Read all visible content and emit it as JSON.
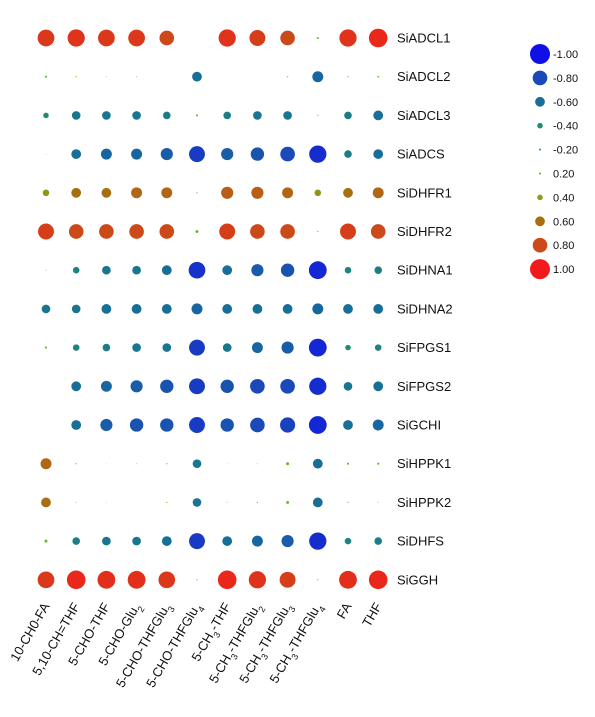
{
  "chart_data": {
    "type": "correlation-dotplot",
    "title": "",
    "xlabel": "",
    "ylabel": "",
    "columns": [
      {
        "text": "10-CH0-FA",
        "sub": "",
        "after": ""
      },
      {
        "text": "5,10-CH=THF",
        "sub": "",
        "after": ""
      },
      {
        "text": "5-CHO-THF",
        "sub": "",
        "after": ""
      },
      {
        "text": "5-CHO-Glu",
        "sub": "2",
        "after": ""
      },
      {
        "text": "5-CHO-THFGlu",
        "sub": "3",
        "after": ""
      },
      {
        "text": "5-CHO-THFGlu",
        "sub": "4",
        "after": ""
      },
      {
        "text": "5-CH",
        "sub": "3",
        "after": "-THF"
      },
      {
        "text": "5-CH",
        "sub": "3",
        "after": "-THFGlu",
        "sub2": "2"
      },
      {
        "text": "5-CH",
        "sub": "3",
        "after": "-THFGlu",
        "sub2": "3"
      },
      {
        "text": "5-CH",
        "sub": "3",
        "after": "-THFGlu",
        "sub2": "4"
      },
      {
        "text": "FA",
        "sub": "",
        "after": ""
      },
      {
        "text": "THF",
        "sub": "",
        "after": ""
      }
    ],
    "rows": [
      "SiADCL1",
      "SiADCL2",
      "SiADCL3",
      "SiADCS",
      "SiDHFR1",
      "SiDHFR2",
      "SiDHNA1",
      "SiDHNA2",
      "SiFPGS1",
      "SiFPGS2",
      "SiGCHI",
      "SiHPPK1",
      "SiHPPK2",
      "SiDHFS",
      "SiGGH"
    ],
    "values": [
      [
        0.88,
        0.9,
        0.88,
        0.88,
        0.8,
        0.02,
        0.9,
        0.85,
        0.8,
        0.2,
        0.9,
        0.95
      ],
      [
        0.2,
        0.15,
        0.1,
        0.1,
        null,
        -0.6,
        0.02,
        null,
        0.15,
        -0.65,
        0.15,
        0.18
      ],
      [
        -0.4,
        -0.55,
        -0.55,
        -0.55,
        -0.5,
        0.2,
        -0.5,
        -0.55,
        -0.55,
        0.15,
        -0.5,
        -0.6
      ],
      [
        0.05,
        -0.6,
        -0.65,
        -0.65,
        -0.7,
        -0.85,
        -0.7,
        -0.75,
        -0.8,
        -0.9,
        -0.5,
        -0.6
      ],
      [
        0.45,
        0.6,
        0.6,
        0.65,
        0.65,
        0.15,
        0.7,
        0.7,
        0.65,
        0.45,
        0.6,
        0.65
      ],
      [
        0.85,
        0.8,
        0.8,
        0.8,
        0.8,
        0.25,
        0.85,
        0.8,
        0.8,
        0.15,
        0.85,
        0.8
      ],
      [
        0.1,
        -0.45,
        -0.55,
        -0.55,
        -0.6,
        -0.88,
        -0.6,
        -0.7,
        -0.75,
        -0.92,
        -0.45,
        -0.5
      ],
      [
        -0.55,
        -0.55,
        -0.6,
        -0.6,
        -0.6,
        -0.65,
        -0.6,
        -0.6,
        -0.6,
        -0.65,
        -0.6,
        -0.6
      ],
      [
        0.2,
        -0.45,
        -0.5,
        -0.55,
        -0.55,
        -0.85,
        -0.55,
        -0.65,
        -0.7,
        -0.92,
        -0.4,
        -0.45
      ],
      [
        0.02,
        -0.6,
        -0.65,
        -0.7,
        -0.75,
        -0.85,
        -0.75,
        -0.8,
        -0.8,
        -0.9,
        -0.55,
        -0.6
      ],
      [
        null,
        -0.6,
        -0.7,
        -0.75,
        -0.75,
        -0.85,
        -0.75,
        -0.8,
        -0.82,
        -0.92,
        -0.6,
        -0.65
      ],
      [
        0.65,
        0.15,
        0.05,
        0.1,
        0.15,
        -0.55,
        0.05,
        0.1,
        0.25,
        -0.6,
        0.2,
        0.2
      ],
      [
        0.6,
        0.1,
        0.05,
        null,
        0.15,
        -0.55,
        0.1,
        0.15,
        0.25,
        -0.6,
        0.15,
        0.1
      ],
      [
        0.25,
        -0.5,
        -0.55,
        -0.55,
        -0.6,
        -0.85,
        -0.6,
        -0.65,
        -0.7,
        -0.9,
        -0.45,
        -0.5
      ],
      [
        0.88,
        0.95,
        0.92,
        0.92,
        0.88,
        0.15,
        0.95,
        0.9,
        0.85,
        0.15,
        0.92,
        0.95
      ]
    ],
    "legend": {
      "position": "right",
      "levels": [
        "-1.00",
        "-0.80",
        "-0.60",
        "-0.40",
        "-0.20",
        "0.20",
        "0.40",
        "0.60",
        "0.80",
        "1.00"
      ],
      "level_values": [
        -1.0,
        -0.8,
        -0.6,
        -0.4,
        -0.2,
        0.2,
        0.4,
        0.6,
        0.8,
        1.0
      ]
    },
    "color_scale": {
      "stops": [
        -1.0,
        -0.8,
        -0.6,
        -0.4,
        -0.2,
        0.0,
        0.2,
        0.4,
        0.6,
        0.8,
        1.0
      ],
      "colors": [
        "#1010e6",
        "#1a49b8",
        "#176f98",
        "#1e8b73",
        "#24b04a",
        "#ffffff",
        "#4dc21d",
        "#8f9e1a",
        "#a86f10",
        "#cc4a1a",
        "#f21b1b"
      ]
    }
  }
}
